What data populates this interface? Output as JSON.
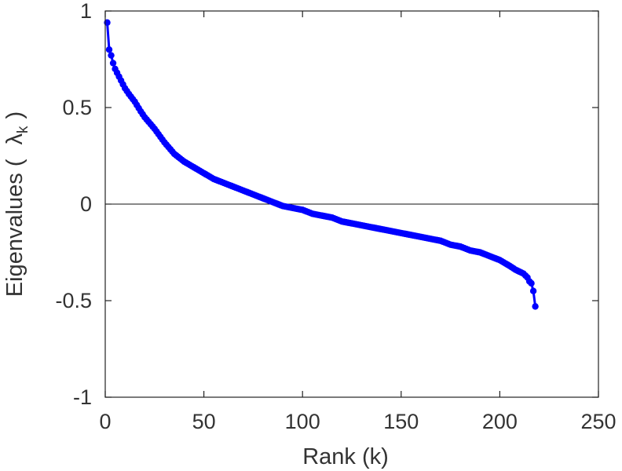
{
  "chart_data": {
    "type": "line",
    "title": "",
    "xlabel": "Rank (k)",
    "ylabel": {
      "prefix": "Eigenvalues (",
      "symbol": "λ",
      "subscript": "k",
      "suffix": ")"
    },
    "xlim": [
      0,
      250
    ],
    "ylim": [
      -1,
      1
    ],
    "xticks": [
      0,
      50,
      100,
      150,
      200,
      250
    ],
    "xtick_labels": [
      "0",
      "50",
      "100",
      "150",
      "200",
      "250"
    ],
    "yticks": [
      -1,
      -0.5,
      0,
      0.5,
      1
    ],
    "ytick_labels": [
      "-1",
      "-0.5",
      "0",
      "0.5",
      "1"
    ],
    "grid": false,
    "reference_line_y": 0,
    "series": [
      {
        "color": "#0000ff",
        "marker": "circle",
        "n_points": 218,
        "x": [
          1,
          2,
          3,
          4,
          5,
          6,
          8,
          10,
          12,
          15,
          18,
          20,
          25,
          30,
          35,
          40,
          45,
          50,
          55,
          60,
          65,
          70,
          75,
          80,
          85,
          90,
          95,
          100,
          105,
          110,
          115,
          120,
          125,
          130,
          135,
          140,
          145,
          150,
          155,
          160,
          165,
          170,
          175,
          180,
          185,
          190,
          195,
          200,
          205,
          208,
          210,
          212,
          214,
          215,
          216,
          217,
          218
        ],
        "y": [
          0.94,
          0.8,
          0.77,
          0.73,
          0.7,
          0.68,
          0.64,
          0.6,
          0.57,
          0.53,
          0.48,
          0.45,
          0.39,
          0.32,
          0.26,
          0.22,
          0.19,
          0.16,
          0.13,
          0.11,
          0.09,
          0.07,
          0.05,
          0.03,
          0.01,
          -0.01,
          -0.02,
          -0.03,
          -0.05,
          -0.06,
          -0.07,
          -0.09,
          -0.1,
          -0.11,
          -0.12,
          -0.13,
          -0.14,
          -0.15,
          -0.16,
          -0.17,
          -0.18,
          -0.19,
          -0.21,
          -0.22,
          -0.24,
          -0.25,
          -0.27,
          -0.29,
          -0.32,
          -0.34,
          -0.35,
          -0.36,
          -0.38,
          -0.4,
          -0.41,
          -0.45,
          -0.53
        ]
      }
    ]
  }
}
